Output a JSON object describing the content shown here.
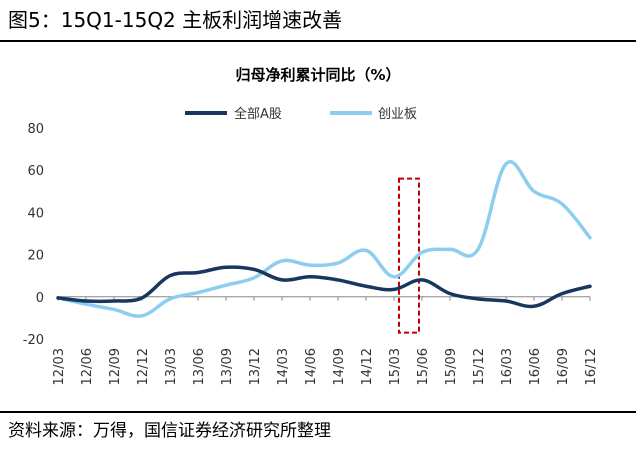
{
  "figure": {
    "label": "图5：",
    "title": "15Q1-15Q2 主板利润增速改善",
    "source": "资料来源：万得，国信证券经济研究所整理"
  },
  "chart_data": {
    "type": "line",
    "title": "归母净利累计同比（%）",
    "xlabel": "",
    "ylabel": "",
    "ylim": [
      -20,
      80
    ],
    "yticks": [
      -20,
      0,
      20,
      40,
      60,
      80
    ],
    "grid": false,
    "legend_position": "top-center",
    "x_tick_labels": [
      "12/03",
      "12/06",
      "12/09",
      "12/12",
      "13/03",
      "13/06",
      "13/09",
      "13/12",
      "14/03",
      "14/06",
      "14/09",
      "14/12",
      "15/03",
      "15/06",
      "15/09",
      "15/12",
      "16/03",
      "16/06",
      "16/09",
      "16/12"
    ],
    "series": [
      {
        "name": "全部A股",
        "color": "#17375e",
        "values": [
          -0.5,
          -2,
          -2,
          -0.5,
          10,
          11.5,
          14,
          13,
          8,
          9.5,
          8,
          5,
          3.5,
          8,
          1.5,
          -1,
          -2,
          -4.5,
          1.5,
          5
        ]
      },
      {
        "name": "创业板",
        "color": "#8dcdf0",
        "values": [
          -0.5,
          -3.5,
          -6,
          -9,
          -1,
          2,
          5.5,
          9,
          17,
          15,
          16,
          22,
          9.5,
          21,
          22.5,
          22.5,
          63,
          50,
          44,
          28
        ]
      }
    ],
    "annotation": {
      "type": "dashed-rectangle",
      "color": "#c00000",
      "x_range": [
        "15/03",
        "15/06"
      ],
      "y_range": [
        -17,
        56
      ]
    }
  }
}
